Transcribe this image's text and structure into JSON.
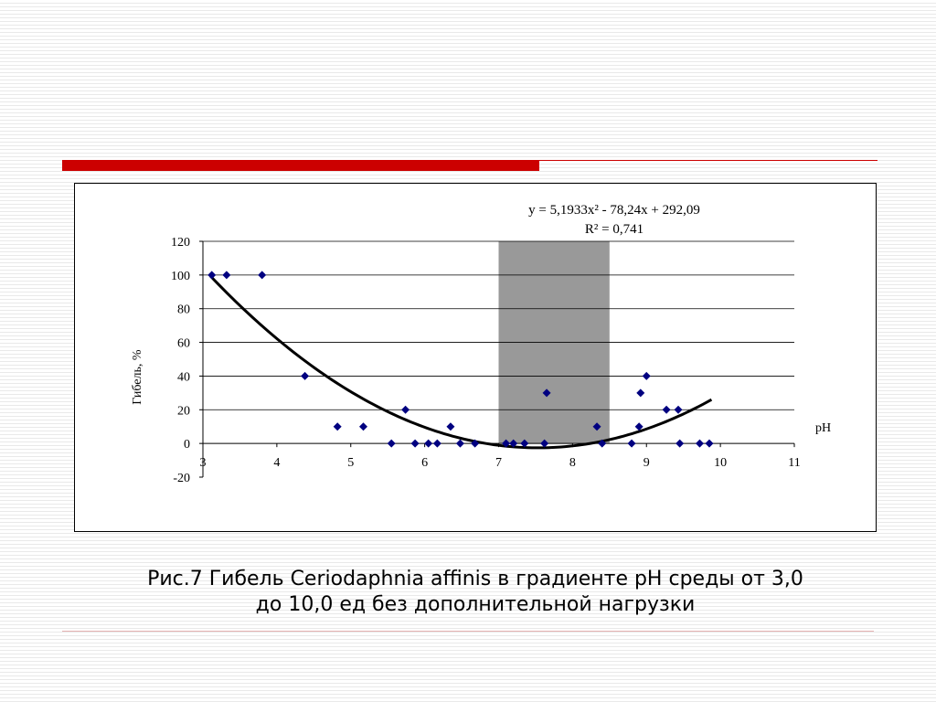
{
  "caption": {
    "line1": "Рис.7 Гибель Ceriodaphnia affinis в градиенте pH среды от 3,0",
    "line2": "до 10,0 ед без дополнительной нагрузки"
  },
  "colors": {
    "accent": "#cc0000",
    "marker": "#000080",
    "trendline": "#000000",
    "shaded_band": "#999999"
  },
  "chart_data": {
    "type": "scatter",
    "title": "",
    "xlabel": "pH",
    "ylabel": "Гибель, %",
    "xlim": [
      3,
      11
    ],
    "ylim": [
      -20,
      120
    ],
    "x_ticks": [
      "3",
      "4",
      "5",
      "6",
      "7",
      "8",
      "9",
      "10",
      "11"
    ],
    "y_ticks": [
      "-20",
      "0",
      "20",
      "40",
      "60",
      "80",
      "100",
      "120"
    ],
    "grid": "horizontal",
    "shaded_range": [
      7.0,
      8.5
    ],
    "points": [
      [
        3.12,
        100
      ],
      [
        3.32,
        100
      ],
      [
        3.8,
        100
      ],
      [
        4.38,
        40
      ],
      [
        4.82,
        10
      ],
      [
        5.17,
        10
      ],
      [
        5.55,
        0
      ],
      [
        5.74,
        20
      ],
      [
        5.87,
        0
      ],
      [
        6.05,
        0
      ],
      [
        6.17,
        0
      ],
      [
        6.35,
        10
      ],
      [
        6.48,
        0
      ],
      [
        6.68,
        0
      ],
      [
        7.1,
        0
      ],
      [
        7.2,
        0
      ],
      [
        7.35,
        0
      ],
      [
        7.62,
        0
      ],
      [
        7.65,
        30
      ],
      [
        8.33,
        10
      ],
      [
        8.4,
        0
      ],
      [
        8.8,
        0
      ],
      [
        8.9,
        10
      ],
      [
        8.92,
        30
      ],
      [
        9.0,
        40
      ],
      [
        9.27,
        20
      ],
      [
        9.43,
        20
      ],
      [
        9.45,
        0
      ],
      [
        9.72,
        0
      ],
      [
        9.85,
        0
      ]
    ],
    "trendline": {
      "type": "polynomial",
      "coefficients": [
        5.1933,
        -78.24,
        292.09
      ],
      "x_range": [
        3.1,
        9.88
      ],
      "equation": "y = 5,1933x² - 78,24x + 292,09",
      "r_squared": "R² = 0,741"
    }
  }
}
